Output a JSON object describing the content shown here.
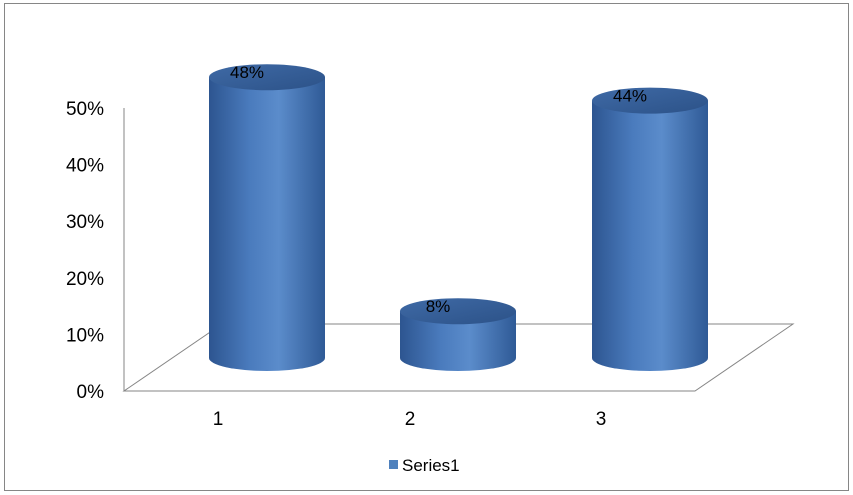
{
  "chart_data": {
    "type": "bar",
    "style": "3d-cylinder",
    "categories": [
      "1",
      "2",
      "3"
    ],
    "series": [
      {
        "name": "Series1",
        "values": [
          48,
          8,
          44
        ],
        "color": "#4F81BD"
      }
    ],
    "data_labels": [
      "48%",
      "8%",
      "44%"
    ],
    "y_ticks": [
      "0%",
      "10%",
      "20%",
      "30%",
      "40%",
      "50%"
    ],
    "ylim": [
      0,
      50
    ],
    "grid": false,
    "legend_position": "bottom",
    "title": "",
    "xlabel": "",
    "ylabel": ""
  }
}
